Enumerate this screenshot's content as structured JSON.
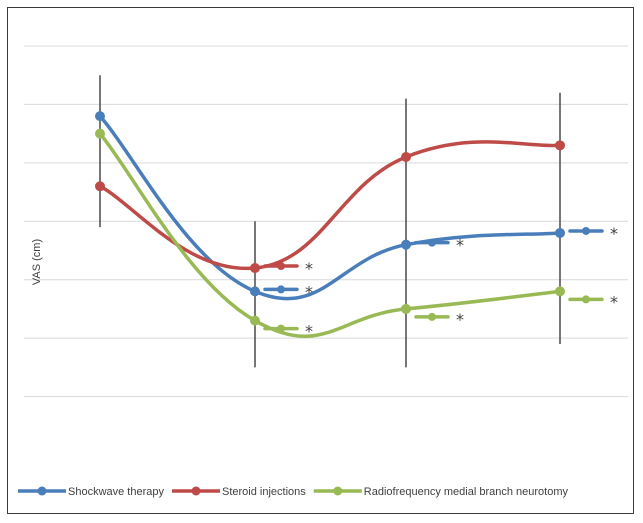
{
  "chart_data": {
    "type": "line",
    "title": "",
    "xlabel": "",
    "ylabel": "VAS (cm)",
    "x": [
      0,
      1,
      2,
      3
    ],
    "ylim": [
      0,
      7
    ],
    "grid": true,
    "legend_position": "bottom",
    "series": [
      {
        "name": "Shockwave therapy",
        "color": "#4a7ebb",
        "values": [
          5.8,
          2.8,
          3.6,
          3.8
        ],
        "error": [
          0.7,
          0.8,
          1.0,
          0.9
        ],
        "significance": [
          false,
          true,
          true,
          true
        ]
      },
      {
        "name": "Steroid injections",
        "color": "#be4b48",
        "values": [
          4.6,
          3.2,
          5.1,
          5.3
        ],
        "error": [
          0,
          0,
          0,
          0
        ],
        "significance": [
          false,
          true,
          false,
          false
        ]
      },
      {
        "name": "Radiofrequency medial branch neurotomy",
        "color": "#98b954",
        "values": [
          5.5,
          2.3,
          2.5,
          2.8
        ],
        "error": [
          0,
          0,
          0,
          0
        ],
        "significance": [
          false,
          true,
          true,
          true
        ]
      }
    ],
    "significance_marker": "*"
  }
}
